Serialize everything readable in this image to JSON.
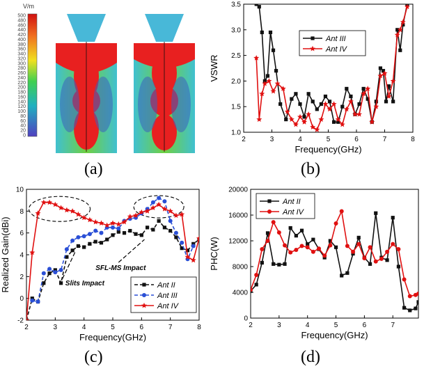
{
  "panel_labels": {
    "a": "(a)",
    "b": "(b)",
    "c": "(c)",
    "d": "(d)"
  },
  "field_plot": {
    "unit": "V/m",
    "ticks": [
      "500",
      "480",
      "460",
      "440",
      "420",
      "400",
      "380",
      "360",
      "340",
      "320",
      "300",
      "280",
      "260",
      "240",
      "220",
      "200",
      "180",
      "160",
      "140",
      "120",
      "100",
      "80",
      "60",
      "40",
      "20",
      "0"
    ]
  },
  "chart_data": [
    {
      "id": "b",
      "type": "line",
      "xlabel": "Frequency(GHz)",
      "ylabel": "VSWR",
      "xlim": [
        2,
        8
      ],
      "ylim": [
        1.0,
        3.5
      ],
      "xticks": [
        2,
        3,
        4,
        5,
        6,
        7,
        8
      ],
      "yticks": [
        1.0,
        1.5,
        2.0,
        2.5,
        3.0,
        3.5
      ],
      "legend_position": "upper-right",
      "series": [
        {
          "name": "Ant III",
          "color": "#111111",
          "marker": "square",
          "x": [
            2.45,
            2.55,
            2.65,
            2.75,
            2.85,
            2.95,
            3.05,
            3.15,
            3.3,
            3.5,
            3.7,
            3.85,
            4.0,
            4.15,
            4.3,
            4.45,
            4.6,
            4.75,
            4.9,
            5.05,
            5.2,
            5.35,
            5.5,
            5.65,
            5.8,
            5.95,
            6.1,
            6.25,
            6.4,
            6.55,
            6.7,
            6.85,
            6.95,
            7.05,
            7.15,
            7.3,
            7.45,
            7.55,
            7.65,
            7.8
          ],
          "y": [
            3.5,
            3.45,
            2.95,
            2.0,
            2.1,
            2.95,
            2.6,
            2.2,
            1.55,
            1.25,
            1.65,
            1.75,
            1.55,
            1.3,
            1.75,
            1.6,
            1.45,
            1.55,
            1.7,
            1.6,
            1.2,
            1.2,
            1.5,
            1.85,
            1.7,
            1.35,
            1.55,
            1.85,
            1.65,
            1.2,
            1.6,
            2.25,
            2.2,
            1.6,
            1.9,
            1.6,
            3.0,
            2.6,
            3.1,
            3.5
          ]
        },
        {
          "name": "Ant IV",
          "color": "#e01010",
          "marker": "star",
          "x": [
            2.45,
            2.55,
            2.65,
            2.75,
            2.9,
            3.05,
            3.2,
            3.4,
            3.55,
            3.7,
            3.85,
            4.0,
            4.15,
            4.3,
            4.45,
            4.6,
            4.75,
            4.9,
            5.05,
            5.2,
            5.35,
            5.5,
            5.65,
            5.8,
            5.95,
            6.1,
            6.25,
            6.4,
            6.55,
            6.7,
            6.85,
            7.0,
            7.15,
            7.3,
            7.45,
            7.55,
            7.65,
            7.8
          ],
          "y": [
            2.45,
            1.25,
            1.75,
            1.95,
            2.0,
            1.8,
            1.95,
            1.85,
            1.4,
            1.25,
            1.15,
            1.3,
            1.2,
            1.35,
            1.1,
            1.05,
            1.25,
            1.55,
            1.45,
            1.55,
            1.25,
            1.15,
            1.45,
            1.6,
            1.35,
            1.35,
            1.75,
            1.85,
            1.2,
            1.5,
            2.1,
            2.15,
            1.7,
            2.0,
            2.9,
            3.0,
            3.15,
            3.45
          ]
        }
      ]
    },
    {
      "id": "c",
      "type": "line",
      "xlabel": "Frequency(GHz)",
      "ylabel": "Realized Gain(dBi)",
      "xlim": [
        2,
        8
      ],
      "ylim": [
        -2,
        10
      ],
      "xticks": [
        2,
        3,
        4,
        5,
        6,
        7,
        8
      ],
      "yticks": [
        -2,
        0,
        2,
        4,
        6,
        8,
        10
      ],
      "legend_position": "lower-right",
      "annotations": [
        "Slits Impact",
        "SFL-MS Impact"
      ],
      "series": [
        {
          "name": "Ant II",
          "color": "#111111",
          "marker": "square",
          "dash": true,
          "x": [
            2.0,
            2.2,
            2.4,
            2.6,
            2.8,
            3.0,
            3.2,
            3.4,
            3.6,
            3.8,
            4.0,
            4.2,
            4.4,
            4.6,
            4.8,
            5.0,
            5.2,
            5.4,
            5.6,
            5.8,
            6.0,
            6.2,
            6.4,
            6.6,
            6.8,
            7.0,
            7.2,
            7.4,
            7.6,
            7.8,
            8.0
          ],
          "y": [
            -2.0,
            0.0,
            -0.3,
            1.4,
            2.3,
            2.6,
            1.4,
            3.8,
            4.4,
            4.8,
            4.7,
            5.0,
            5.2,
            5.1,
            5.4,
            5.8,
            6.1,
            6.0,
            6.2,
            5.9,
            5.8,
            6.5,
            6.3,
            7.1,
            6.5,
            6.2,
            5.6,
            4.6,
            4.4,
            5.0,
            5.4
          ]
        },
        {
          "name": "Ant III",
          "color": "#2a4fd6",
          "marker": "circle",
          "dash": true,
          "x": [
            2.2,
            2.4,
            2.6,
            2.8,
            3.0,
            3.2,
            3.4,
            3.6,
            3.8,
            4.0,
            4.2,
            4.4,
            4.6,
            4.8,
            5.0,
            5.2,
            5.4,
            5.6,
            5.8,
            6.0,
            6.2,
            6.4,
            6.6,
            6.8,
            7.0,
            7.2,
            7.4,
            7.6,
            7.8
          ],
          "y": [
            -0.2,
            -0.3,
            2.3,
            2.7,
            2.4,
            2.6,
            4.5,
            5.3,
            5.6,
            5.7,
            5.9,
            6.2,
            6.0,
            6.5,
            6.5,
            6.4,
            7.1,
            7.3,
            7.4,
            7.8,
            8.2,
            8.8,
            9.2,
            8.9,
            7.1,
            6.0,
            5.1,
            3.6,
            4.8
          ]
        },
        {
          "name": "Ant IV",
          "color": "#e01010",
          "marker": "star",
          "dash": false,
          "x": [
            2.0,
            2.2,
            2.4,
            2.6,
            2.8,
            3.0,
            3.2,
            3.4,
            3.6,
            3.8,
            4.0,
            4.2,
            4.4,
            4.6,
            4.8,
            5.0,
            5.2,
            5.4,
            5.6,
            5.8,
            6.0,
            6.2,
            6.4,
            6.6,
            6.8,
            7.0,
            7.2,
            7.4,
            7.6,
            7.8,
            8.0
          ],
          "y": [
            -2.0,
            4.2,
            7.8,
            8.8,
            8.8,
            8.6,
            8.3,
            8.1,
            8.0,
            7.7,
            7.4,
            7.2,
            7.0,
            6.9,
            6.7,
            6.9,
            6.8,
            7.0,
            7.5,
            7.6,
            7.9,
            8.0,
            8.3,
            8.6,
            8.2,
            8.0,
            7.6,
            7.7,
            3.8,
            3.5,
            5.5
          ]
        }
      ]
    },
    {
      "id": "d",
      "type": "line",
      "xlabel": "Frequency(GHz)",
      "ylabel": "PHC(W)",
      "xlim": [
        2,
        7.9
      ],
      "ylim": [
        0,
        20000
      ],
      "xticks": [
        2,
        3,
        4,
        5,
        6,
        7
      ],
      "yticks": [
        0,
        4000,
        8000,
        12000,
        16000,
        20000
      ],
      "legend_position": "upper-left",
      "series": [
        {
          "name": "Ant II",
          "color": "#111111",
          "marker": "square",
          "x": [
            2.0,
            2.2,
            2.4,
            2.6,
            2.8,
            3.0,
            3.2,
            3.4,
            3.6,
            3.8,
            4.0,
            4.2,
            4.4,
            4.6,
            4.8,
            5.0,
            5.2,
            5.4,
            5.6,
            5.8,
            6.0,
            6.2,
            6.4,
            6.6,
            6.8,
            7.0,
            7.2,
            7.4,
            7.6,
            7.8,
            7.9
          ],
          "y": [
            4200,
            5200,
            8600,
            13200,
            8400,
            8300,
            8400,
            14000,
            12800,
            13600,
            11500,
            12200,
            10700,
            9400,
            12000,
            11000,
            6600,
            7000,
            10000,
            12500,
            9400,
            8400,
            16300,
            9400,
            9000,
            15600,
            8000,
            1600,
            1200,
            1500,
            2500
          ]
        },
        {
          "name": "Ant IV",
          "color": "#e01010",
          "marker": "circle",
          "x": [
            2.0,
            2.2,
            2.4,
            2.6,
            2.8,
            3.0,
            3.2,
            3.4,
            3.6,
            3.8,
            4.0,
            4.2,
            4.4,
            4.6,
            4.8,
            5.0,
            5.2,
            5.4,
            5.6,
            5.8,
            6.0,
            6.2,
            6.4,
            6.6,
            6.8,
            7.0,
            7.2,
            7.4,
            7.6,
            7.8,
            7.9
          ],
          "y": [
            4400,
            6700,
            10700,
            12000,
            14900,
            13300,
            11300,
            10200,
            10600,
            11200,
            11000,
            10300,
            10800,
            9700,
            11300,
            14700,
            16600,
            11200,
            10300,
            11500,
            9300,
            11000,
            8800,
            9200,
            10300,
            11500,
            10700,
            6000,
            3400,
            3600,
            3800
          ]
        }
      ]
    }
  ]
}
